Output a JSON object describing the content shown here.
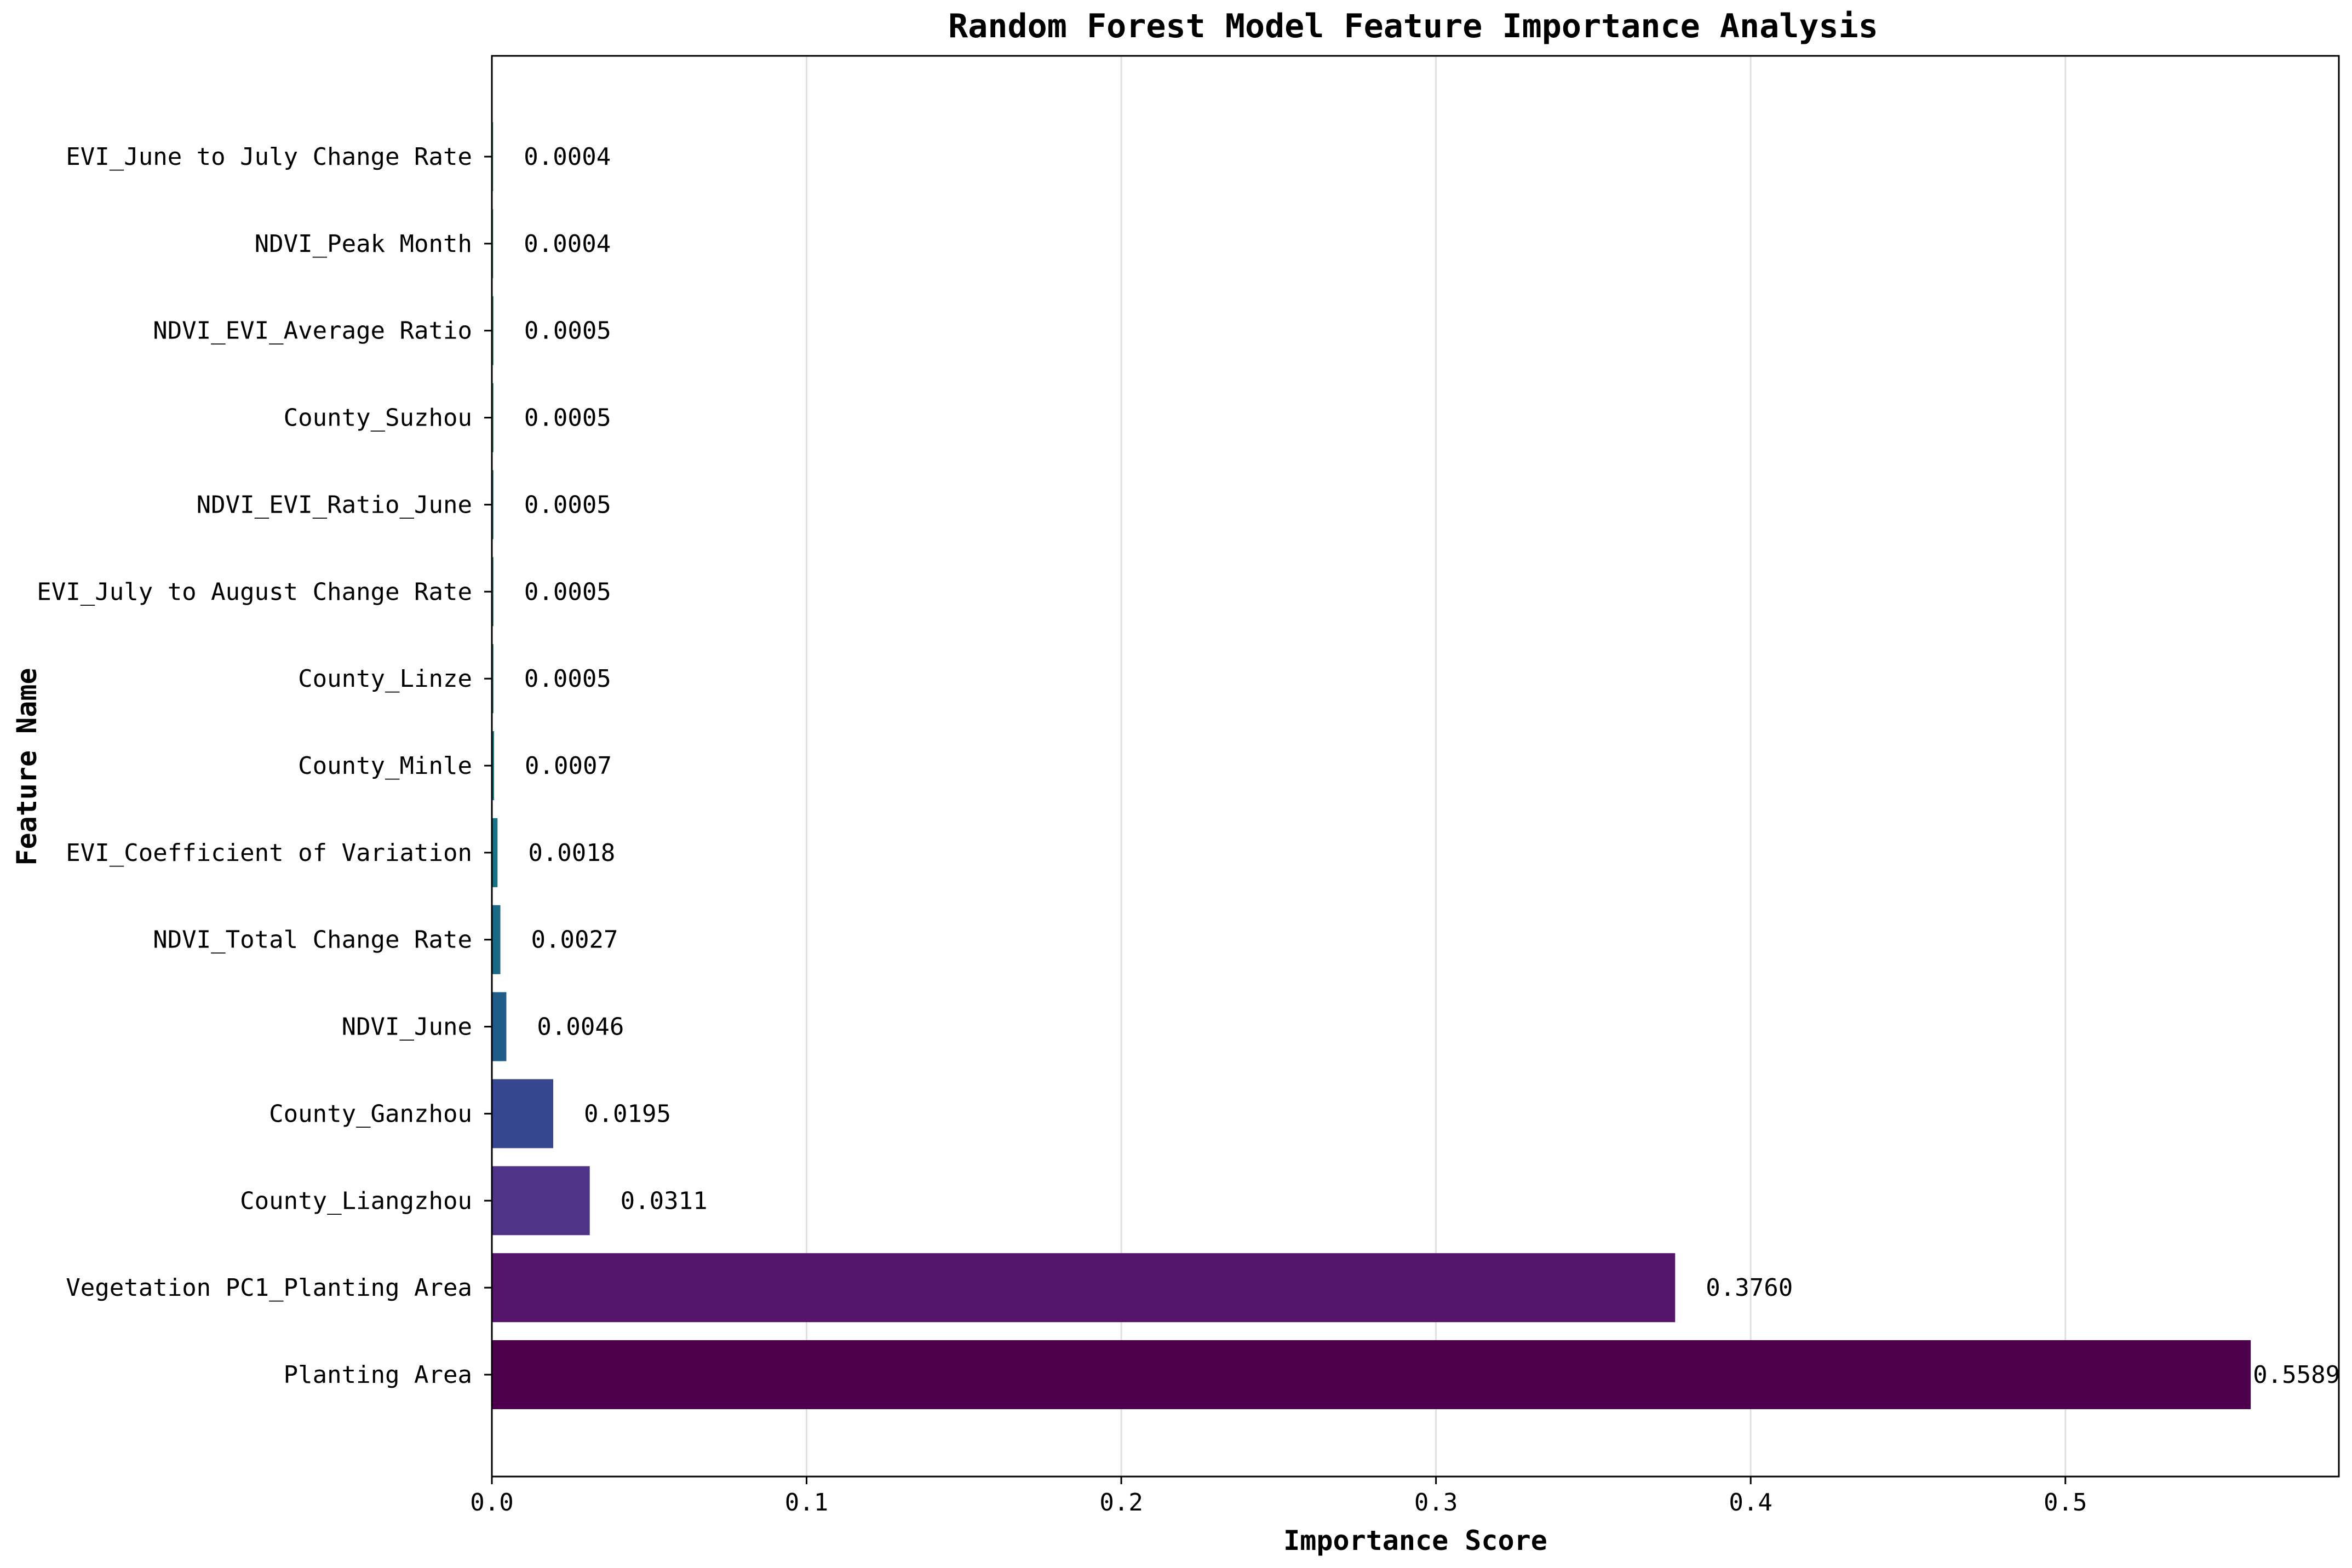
{
  "chart_data": {
    "type": "bar",
    "orientation": "horizontal",
    "title": "Random Forest Model Feature Importance Analysis",
    "xlabel": "Importance Score",
    "ylabel": "Feature Name",
    "xlim": [
      0,
      0.5869
    ],
    "xticks": [
      "0.0",
      "0.1",
      "0.2",
      "0.3",
      "0.4",
      "0.5"
    ],
    "grid": "x",
    "categories": [
      "Planting Area",
      "Vegetation PC1_Planting Area",
      "County_Liangzhou",
      "County_Ganzhou",
      "NDVI_June",
      "NDVI_Total Change Rate",
      "EVI_Coefficient of Variation",
      "County_Minle",
      "County_Linze",
      "EVI_July to August Change Rate",
      "NDVI_EVI_Ratio_June",
      "County_Suzhou",
      "NDVI_EVI_Average Ratio",
      "NDVI_Peak Month",
      "EVI_June to July Change Rate"
    ],
    "values": [
      0.5589,
      0.376,
      0.0311,
      0.0195,
      0.0046,
      0.0027,
      0.0018,
      0.0007,
      0.0005,
      0.0005,
      0.0005,
      0.0005,
      0.0005,
      0.0004,
      0.0004
    ],
    "labels": [
      "0.5589",
      "0.3760",
      "0.0311",
      "0.0195",
      "0.0046",
      "0.0027",
      "0.0018",
      "0.0007",
      "0.0005",
      "0.0005",
      "0.0005",
      "0.0005",
      "0.0005",
      "0.0004",
      "0.0004"
    ],
    "colors": [
      "#4d004b",
      "#54156b",
      "#4f3388",
      "#37478f",
      "#1f5c8a",
      "#1a6886",
      "#197285",
      "#197a84",
      "#1a8082",
      "#1b857f",
      "#1d8a7c",
      "#1f8f78",
      "#229374",
      "#26976f",
      "#2b9a6b"
    ]
  }
}
